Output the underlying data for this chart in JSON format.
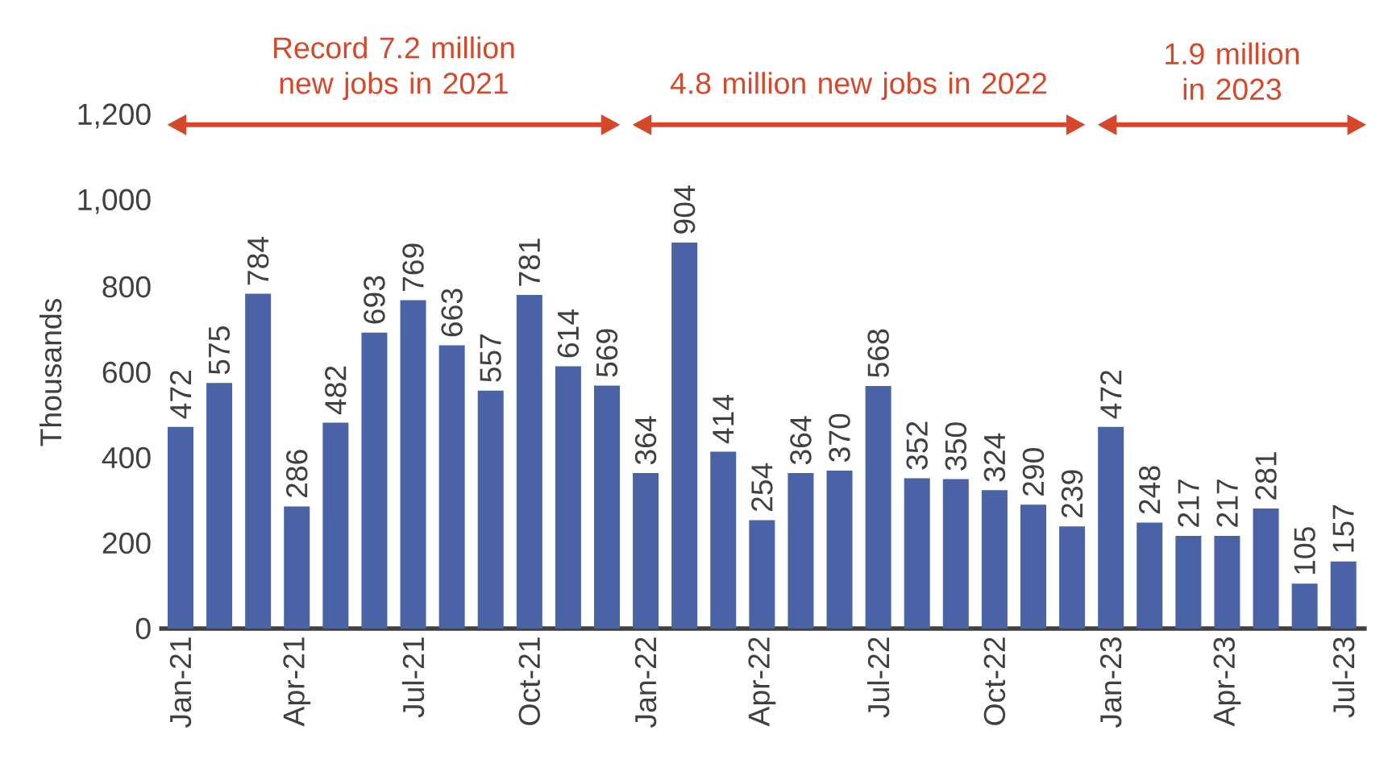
{
  "chart_data": {
    "type": "bar",
    "ylabel": "Thousands",
    "categories": [
      "Jan-21",
      null,
      null,
      "Apr-21",
      null,
      null,
      "Jul-21",
      null,
      null,
      "Oct-21",
      null,
      null,
      "Jan-22",
      null,
      null,
      "Apr-22",
      null,
      null,
      "Jul-22",
      null,
      null,
      "Oct-22",
      null,
      null,
      "Jan-23",
      null,
      null,
      "Apr-23",
      null,
      null,
      "Jul-23"
    ],
    "values": [
      472,
      575,
      784,
      286,
      482,
      693,
      769,
      663,
      557,
      781,
      614,
      569,
      364,
      904,
      414,
      254,
      364,
      370,
      568,
      352,
      350,
      324,
      290,
      239,
      472,
      248,
      217,
      217,
      281,
      105,
      157
    ],
    "color": "#4a62a6",
    "ylim": [
      0,
      1200
    ],
    "yticks": [
      0,
      200,
      400,
      600,
      800,
      {
        "value": 1000,
        "label": "1,000"
      },
      {
        "value": 1200,
        "label": "1,200"
      }
    ],
    "data_labels": true,
    "annotations": [
      "Record 7.2 million new jobs in 2021",
      "4.8 million new jobs in 2022",
      "1.9 million in 2023"
    ]
  }
}
